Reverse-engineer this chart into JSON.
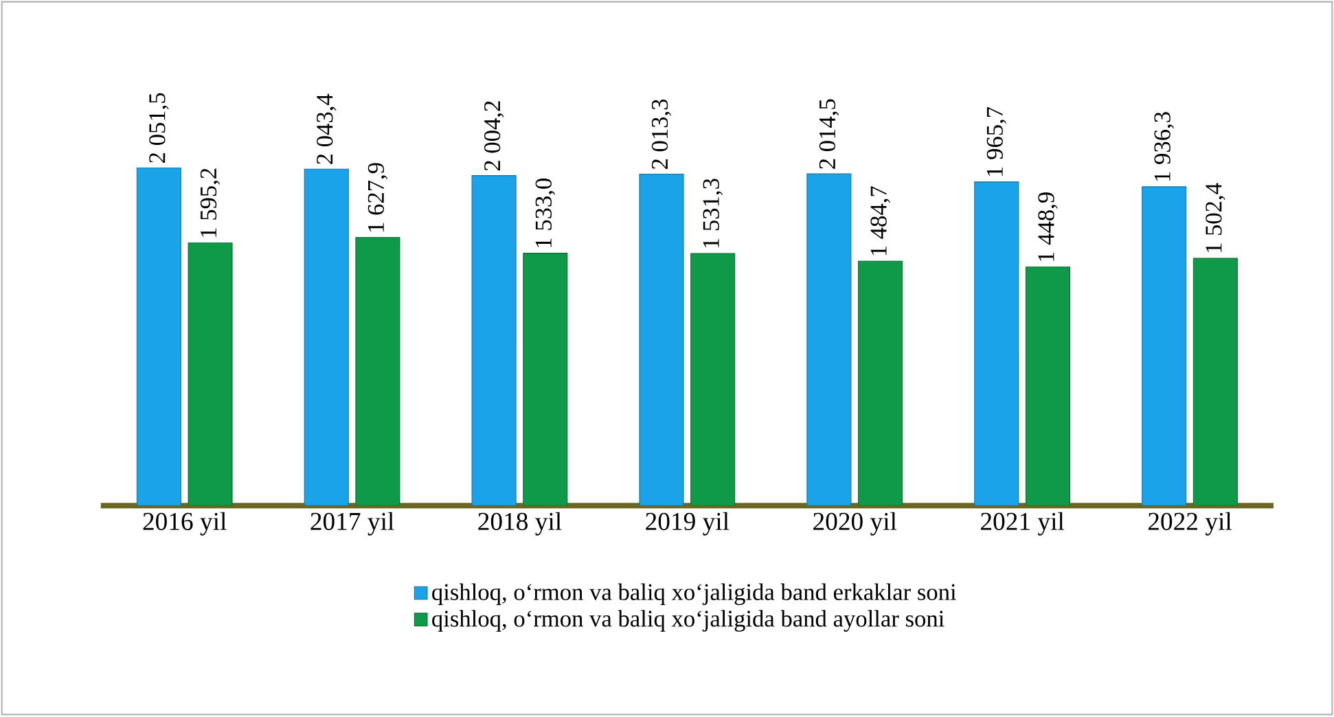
{
  "chart_data": {
    "type": "bar",
    "categories": [
      "2016 yil",
      "2017 yil",
      "2018 yil",
      "2019 yil",
      "2020 yil",
      "2021 yil",
      "2022 yil"
    ],
    "series": [
      {
        "name": "qishloq, o‘rmon va baliq xo‘jaligida band erkaklar soni",
        "color": "#1aa3e8",
        "values": [
          2051.5,
          2043.4,
          2004.2,
          2013.3,
          2014.5,
          1965.7,
          1936.3
        ],
        "value_labels": [
          "2 051,5",
          "2 043,4",
          "2 004,2",
          "2 013,3",
          "2 014,5",
          "1 965,7",
          "1 936,3"
        ]
      },
      {
        "name": "qishloq, o‘rmon va baliq xo‘jaligida band ayollar soni",
        "color": "#0e9a48",
        "values": [
          1595.2,
          1627.9,
          1533.0,
          1531.3,
          1484.7,
          1448.9,
          1502.4
        ],
        "value_labels": [
          "1 595,2",
          "1 627,9",
          "1 533,0",
          "1 531,3",
          "1 484,7",
          "1 448,9",
          "1 502,4"
        ]
      }
    ],
    "legend": "bottom"
  }
}
